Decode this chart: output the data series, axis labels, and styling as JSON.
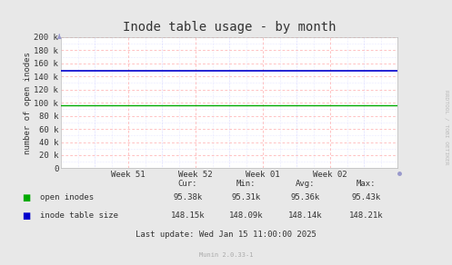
{
  "title": "Inode table usage - by month",
  "ylabel": "number of open inodes",
  "background_color": "#e8e8e8",
  "plot_bg_color": "#ffffff",
  "grid_color_major": "#ffaaaa",
  "grid_color_minor": "#ccccff",
  "ylim": [
    0,
    200000
  ],
  "y_ticks": [
    0,
    20000,
    40000,
    60000,
    80000,
    100000,
    120000,
    140000,
    160000,
    180000,
    200000
  ],
  "y_tick_labels": [
    "0",
    "20 k",
    "40 k",
    "60 k",
    "80 k",
    "100 k",
    "120 k",
    "140 k",
    "160 k",
    "180 k",
    "200 k"
  ],
  "open_inodes_value": 95380,
  "inode_table_size_value": 148150,
  "open_inodes_color": "#00aa00",
  "inode_table_size_color": "#0000cc",
  "legend_labels": [
    "open inodes",
    "inode table size"
  ],
  "stats_header": [
    "Cur:",
    "Min:",
    "Avg:",
    "Max:"
  ],
  "stats_open_inodes": [
    "95.38k",
    "95.31k",
    "95.36k",
    "95.43k"
  ],
  "stats_inode_table": [
    "148.15k",
    "148.09k",
    "148.14k",
    "148.21k"
  ],
  "last_update": "Last update: Wed Jan 15 11:00:00 2025",
  "munin_version": "Munin 2.0.33-1",
  "rrdtool_text": "RRDTOOL / TOBI OETIKER",
  "title_fontsize": 10,
  "axis_fontsize": 6.5,
  "legend_fontsize": 6.5,
  "stats_fontsize": 6.5
}
